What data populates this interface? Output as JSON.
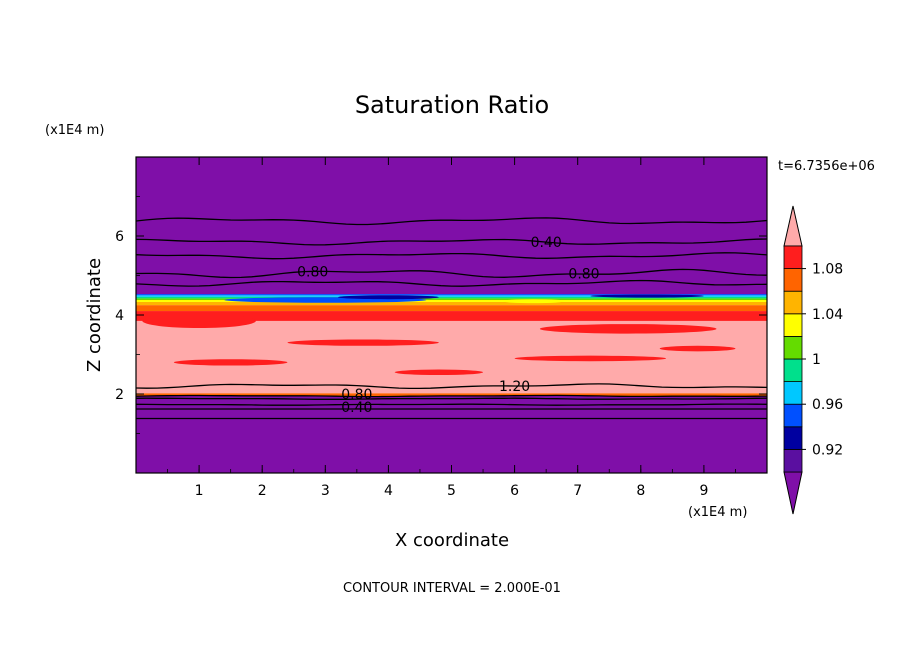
{
  "chart_data": {
    "type": "contour",
    "title": "Saturation Ratio",
    "xlabel": "X coordinate",
    "ylabel": "Z coordinate",
    "x_unit": "(x1E4 m)",
    "y_unit": "(x1E4 m)",
    "xlim": [
      0,
      10
    ],
    "ylim": [
      0,
      8
    ],
    "xticks": [
      "1",
      "2",
      "3",
      "4",
      "5",
      "6",
      "7",
      "8",
      "9"
    ],
    "yticks": [
      "2",
      "4",
      "6"
    ],
    "time_label": "t=6.7356e+06",
    "contour_interval_text": "CONTOUR INTERVAL = 2.000E-01",
    "contour_labels": [
      {
        "text": "0.40",
        "x": 6.5,
        "z": 5.85
      },
      {
        "text": "0.80",
        "x": 2.8,
        "z": 5.1
      },
      {
        "text": "0.80",
        "x": 7.1,
        "z": 5.05
      },
      {
        "text": "1.20",
        "x": 6.0,
        "z": 2.2
      },
      {
        "text": "0.80",
        "x": 3.5,
        "z": 2.0
      },
      {
        "text": "0.40",
        "x": 3.5,
        "z": 1.67
      }
    ],
    "colorbar": {
      "ticks": [
        "1.08",
        "1.04",
        "1",
        "0.96",
        "0.92"
      ],
      "levels": [
        0.9,
        0.92,
        0.94,
        0.96,
        0.98,
        1.0,
        1.02,
        1.04,
        1.06,
        1.08,
        1.1
      ],
      "colors": [
        "#5a0fa0",
        "#0000a0",
        "#0050ff",
        "#00c8ff",
        "#00e08c",
        "#64dc00",
        "#ffff00",
        "#ffb400",
        "#ff6400",
        "#ff1e1e"
      ],
      "under_color": "#7f0fa8",
      "over_color": "#ffaaaa"
    },
    "bands": [
      {
        "z0": 0.0,
        "z1": 1.95,
        "color": "#7f0fa8"
      },
      {
        "z0": 1.95,
        "z1": 2.02,
        "color": "#ff6400"
      },
      {
        "z0": 2.02,
        "z1": 3.85,
        "color": "#ffaaaa"
      },
      {
        "z0": 3.85,
        "z1": 4.1,
        "color": "#ff1e1e"
      },
      {
        "z0": 4.1,
        "z1": 4.25,
        "color": "#ff6400"
      },
      {
        "z0": 4.25,
        "z1": 4.33,
        "color": "#ffb400"
      },
      {
        "z0": 4.33,
        "z1": 4.38,
        "color": "#ffff00"
      },
      {
        "z0": 4.38,
        "z1": 4.42,
        "color": "#64dc00"
      },
      {
        "z0": 4.42,
        "z1": 4.46,
        "color": "#00e08c"
      },
      {
        "z0": 4.46,
        "z1": 4.5,
        "color": "#00c8ff"
      },
      {
        "z0": 4.5,
        "z1": 4.53,
        "color": "#0050ff"
      },
      {
        "z0": 4.53,
        "z1": 8.0,
        "color": "#7f0fa8"
      }
    ],
    "patches": [
      {
        "cx": 3.0,
        "cz": 4.38,
        "rx": 1.6,
        "rz": 0.07,
        "color": "#0050ff"
      },
      {
        "cx": 4.0,
        "cz": 4.45,
        "rx": 0.8,
        "rz": 0.05,
        "color": "#0000a0"
      },
      {
        "cx": 8.1,
        "cz": 4.48,
        "rx": 0.9,
        "rz": 0.04,
        "color": "#0000a0"
      },
      {
        "cx": 6.3,
        "cz": 4.35,
        "rx": 0.5,
        "rz": 0.05,
        "color": "#ffff00"
      },
      {
        "cx": 1.0,
        "cz": 3.85,
        "rx": 0.9,
        "rz": 0.18,
        "color": "#ff1e1e"
      },
      {
        "cx": 7.8,
        "cz": 3.65,
        "rx": 1.4,
        "rz": 0.12,
        "color": "#ff1e1e"
      },
      {
        "cx": 3.6,
        "cz": 3.3,
        "rx": 1.2,
        "rz": 0.08,
        "color": "#ff1e1e"
      },
      {
        "cx": 1.5,
        "cz": 2.8,
        "rx": 0.9,
        "rz": 0.08,
        "color": "#ff1e1e"
      },
      {
        "cx": 7.2,
        "cz": 2.9,
        "rx": 1.2,
        "rz": 0.07,
        "color": "#ff1e1e"
      },
      {
        "cx": 4.8,
        "cz": 2.55,
        "rx": 0.7,
        "rz": 0.07,
        "color": "#ff1e1e"
      },
      {
        "cx": 8.9,
        "cz": 3.15,
        "rx": 0.6,
        "rz": 0.07,
        "color": "#ff1e1e"
      }
    ],
    "contour_lines": [
      {
        "z": 6.38,
        "amp": 0.06
      },
      {
        "z": 5.85,
        "amp": 0.05
      },
      {
        "z": 5.5,
        "amp": 0.05
      },
      {
        "z": 5.05,
        "amp": 0.07
      },
      {
        "z": 4.8,
        "amp": 0.05
      },
      {
        "z": 2.2,
        "amp": 0.04
      },
      {
        "z": 1.95,
        "amp": 0.01
      },
      {
        "z": 1.88,
        "amp": 0.01
      },
      {
        "z": 1.73,
        "amp": 0.01
      },
      {
        "z": 1.62,
        "amp": 0.0
      },
      {
        "z": 1.38,
        "amp": 0.0
      }
    ]
  }
}
